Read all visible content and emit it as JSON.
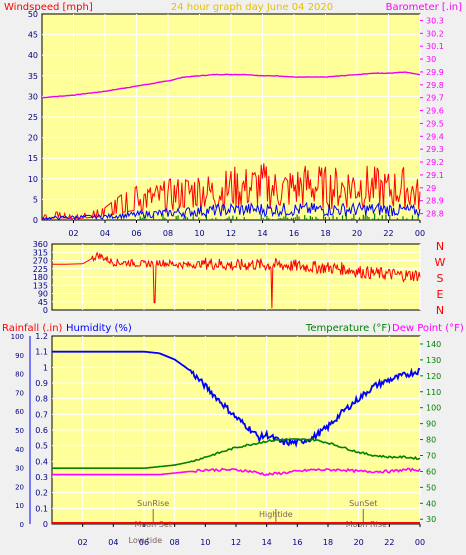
{
  "header": {
    "windspeed_label": "Windspeed [mph]",
    "title": "24 hour graph day   June 04 2020",
    "barometer_label": "Barometer [.in]"
  },
  "footer": {
    "rainfall_label": "Rainfall (.in)",
    "humidity_label": "Humidity (%)",
    "temperature_label": "Temperature (°F)",
    "dewpoint_label": "Dew Point (°F)"
  },
  "colors": {
    "background": "#f0f0f0",
    "plot_bg": "#ffff99",
    "frame": "#000000",
    "wind": "#ff0000",
    "wind_avg": "#0000ff",
    "wind_calm": "#008000",
    "barometer": "#ee00ee",
    "humidity": "#0000ff",
    "temperature": "#008000",
    "dewpoint": "#ff00ff",
    "rain": "#ff0000",
    "grid": "#ffffff"
  },
  "chart_data": [
    {
      "type": "line",
      "panel": "wind-barometer",
      "title": "24 hour graph day   June 04 2020",
      "x_ticks": [
        "02",
        "04",
        "06",
        "08",
        "10",
        "12",
        "14",
        "16",
        "18",
        "20",
        "22",
        "00"
      ],
      "xlim": [
        0,
        24
      ],
      "y_left": {
        "label": "Windspeed [mph]",
        "ticks": [
          0,
          5,
          10,
          15,
          20,
          25,
          30,
          35,
          40,
          45,
          50
        ],
        "lim": [
          0,
          50
        ]
      },
      "y_right": {
        "label": "Barometer [.in]",
        "ticks": [
          "28.8",
          "28.9",
          "29",
          "29.1",
          "29.2",
          "29.3",
          "29.4",
          "29.5",
          "29.6",
          "29.7",
          "29.8",
          "29.9",
          "30",
          "30.1",
          "30.2",
          "30.3"
        ],
        "lim": [
          28.75,
          30.35
        ]
      },
      "grid": true,
      "series": [
        {
          "name": "Barometer [.in]",
          "axis": "right",
          "x": [
            0,
            2,
            4,
            6,
            7,
            8,
            9,
            10,
            11,
            12,
            13,
            14,
            15,
            16,
            17,
            18,
            19,
            20,
            21,
            22,
            23,
            24
          ],
          "y": [
            29.7,
            29.72,
            29.75,
            29.79,
            29.81,
            29.83,
            29.86,
            29.87,
            29.88,
            29.88,
            29.88,
            29.87,
            29.87,
            29.86,
            29.86,
            29.86,
            29.87,
            29.88,
            29.89,
            29.89,
            29.9,
            29.88
          ]
        },
        {
          "name": "Windspeed [mph]",
          "axis": "left",
          "kind": "gust",
          "x": [
            0,
            1,
            2,
            3,
            4,
            5,
            6,
            7,
            8,
            9,
            10,
            11,
            12,
            13,
            14,
            15,
            16,
            17,
            18,
            19,
            20,
            21,
            22,
            23,
            24
          ],
          "y": [
            1,
            2,
            1,
            2,
            3,
            6,
            8,
            8,
            9,
            10,
            11,
            10,
            12,
            12,
            13,
            11,
            12,
            13,
            12,
            12,
            13,
            12,
            11,
            12,
            9
          ]
        },
        {
          "name": "Windspeed average",
          "axis": "left",
          "kind": "avg",
          "x": [
            0,
            2,
            4,
            6,
            8,
            10,
            12,
            14,
            16,
            18,
            20,
            22,
            24
          ],
          "y": [
            0.5,
            0.8,
            1,
            1.5,
            2,
            2.5,
            3,
            3,
            3,
            3,
            3,
            3,
            2.5
          ]
        }
      ]
    },
    {
      "type": "scatter",
      "panel": "wind-direction",
      "y_ticks": [
        "360",
        "315",
        "270",
        "225",
        "180",
        "135",
        "90",
        "45",
        "0"
      ],
      "compass_labels": [
        "N",
        "W",
        "S",
        "E",
        "N"
      ],
      "ylim": [
        0,
        360
      ],
      "xlim": [
        0,
        24
      ],
      "series": [
        {
          "name": "Wind direction",
          "x": [
            0,
            1,
            2,
            3,
            4,
            5,
            6,
            7,
            8,
            9,
            10,
            11,
            12,
            13,
            14,
            15,
            16,
            17,
            18,
            19,
            20,
            21,
            22,
            23,
            24
          ],
          "y": [
            250,
            250,
            252,
            300,
            260,
            258,
            250,
            260,
            250,
            245,
            255,
            250,
            240,
            250,
            245,
            245,
            240,
            235,
            230,
            225,
            210,
            200,
            195,
            190,
            190
          ]
        }
      ]
    },
    {
      "type": "line",
      "panel": "humidity-temperature",
      "x_ticks": [
        "02",
        "04",
        "06",
        "08",
        "10",
        "12",
        "14",
        "16",
        "18",
        "20",
        "22",
        "00"
      ],
      "xlim": [
        0,
        24
      ],
      "y_rain": {
        "label": "Rainfall (.in)",
        "ticks": [
          0,
          10,
          20,
          30,
          40,
          50,
          60,
          70,
          80,
          90,
          100
        ]
      },
      "y_humidity": {
        "label": "Humidity (%)",
        "ticks": [
          "0",
          "0.1",
          "0.2",
          "0.3",
          "0.4",
          "0.5",
          "0.6",
          "0.7",
          "0.8",
          "0.9",
          "1",
          "1.1",
          "1.2"
        ],
        "lim": [
          0,
          1.2
        ]
      },
      "y_temp": {
        "label": "Temperature (°F)",
        "ticks": [
          30,
          40,
          50,
          60,
          70,
          80,
          90,
          100,
          110,
          120,
          130,
          140
        ],
        "lim": [
          27,
          145
        ]
      },
      "grid": true,
      "annotations": [
        "SunRise",
        "Moon Set",
        "Low tide",
        "Hightide",
        "SunSet",
        "Moon Rise"
      ],
      "series": [
        {
          "name": "Humidity (%)",
          "axis": "humidity",
          "x": [
            0,
            2,
            4,
            6,
            7,
            8,
            9,
            10,
            11,
            12,
            13,
            13.5,
            14,
            15,
            16,
            17,
            18,
            19,
            20,
            21,
            22,
            23,
            24
          ],
          "y": [
            1.1,
            1.1,
            1.1,
            1.1,
            1.09,
            1.05,
            0.98,
            0.88,
            0.78,
            0.68,
            0.6,
            0.55,
            0.57,
            0.52,
            0.52,
            0.55,
            0.62,
            0.72,
            0.8,
            0.88,
            0.92,
            0.95,
            0.98
          ]
        },
        {
          "name": "Temperature (°F)",
          "axis": "temp",
          "x": [
            0,
            2,
            4,
            6,
            7,
            8,
            9,
            10,
            11,
            12,
            13,
            14,
            15,
            16,
            17,
            18,
            19,
            20,
            21,
            22,
            23,
            24
          ],
          "y": [
            62,
            62,
            62,
            62,
            63,
            64,
            66,
            69,
            72,
            75,
            77,
            79,
            80,
            80,
            80,
            78,
            75,
            72,
            70,
            69,
            69,
            68
          ]
        },
        {
          "name": "Dew Point (°F)",
          "axis": "temp",
          "x": [
            0,
            2,
            4,
            6,
            7,
            8,
            9,
            10,
            11,
            12,
            13,
            14,
            15,
            16,
            17,
            18,
            19,
            20,
            21,
            22,
            23,
            24
          ],
          "y": [
            58,
            58,
            58,
            58,
            58,
            59,
            60,
            61,
            61,
            61,
            60,
            58,
            59,
            60,
            61,
            61,
            61,
            60,
            60,
            60,
            61,
            61
          ]
        }
      ]
    }
  ]
}
